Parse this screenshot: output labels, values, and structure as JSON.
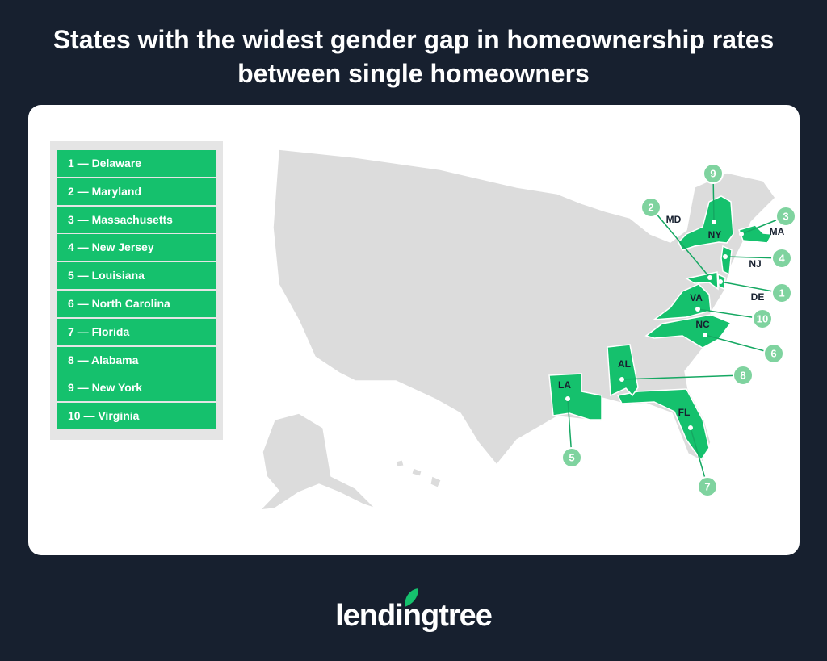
{
  "header": {
    "title": "States with the widest gender gap in homeownership rates between single homeowners"
  },
  "legend": [
    "1 — Delaware",
    "2 — Maryland",
    "3 — Massachusetts",
    "4 — New Jersey",
    "5 — Louisiana",
    "6 — North Carolina",
    "7 — Florida",
    "8 — Alabama",
    "9 — New York",
    "10 — Virginia"
  ],
  "map": {
    "states": [
      {
        "abbr": "DE",
        "rank": 1
      },
      {
        "abbr": "MD",
        "rank": 2
      },
      {
        "abbr": "MA",
        "rank": 3
      },
      {
        "abbr": "NJ",
        "rank": 4
      },
      {
        "abbr": "LA",
        "rank": 5
      },
      {
        "abbr": "NC",
        "rank": 6
      },
      {
        "abbr": "FL",
        "rank": 7
      },
      {
        "abbr": "AL",
        "rank": 8
      },
      {
        "abbr": "NY",
        "rank": 9
      },
      {
        "abbr": "VA",
        "rank": 10
      }
    ]
  },
  "footer": {
    "logo": "lendingtree"
  }
}
